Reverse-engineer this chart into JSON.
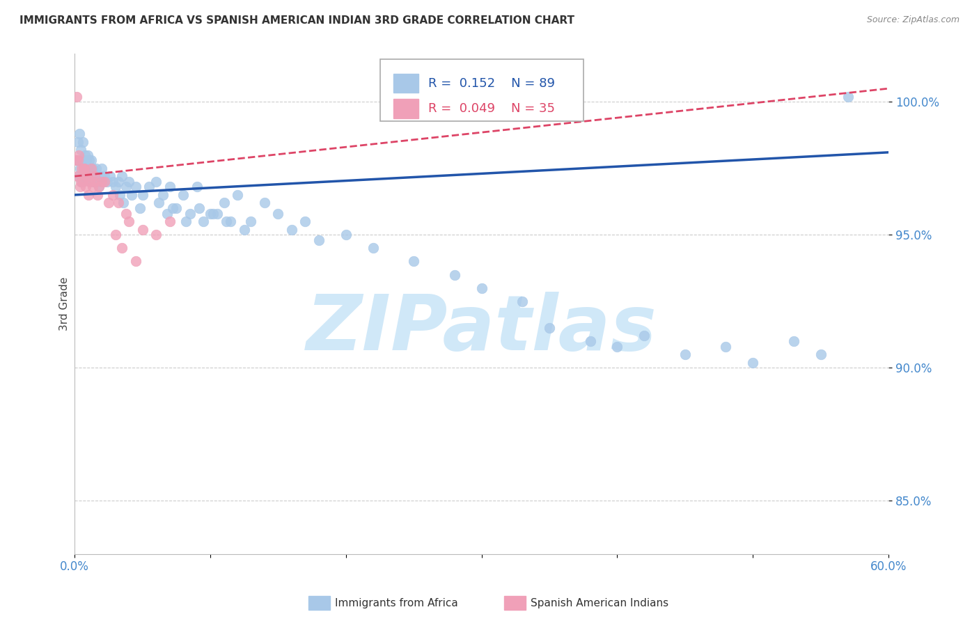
{
  "title": "IMMIGRANTS FROM AFRICA VS SPANISH AMERICAN INDIAN 3RD GRADE CORRELATION CHART",
  "source": "Source: ZipAtlas.com",
  "ylabel": "3rd Grade",
  "xlim": [
    0.0,
    60.0
  ],
  "ylim": [
    83.0,
    101.8
  ],
  "y_ticks": [
    85.0,
    90.0,
    95.0,
    100.0
  ],
  "x_ticks": [
    0.0,
    10.0,
    20.0,
    30.0,
    40.0,
    50.0,
    60.0
  ],
  "legend_R_blue": "0.152",
  "legend_N_blue": "89",
  "legend_R_pink": "0.049",
  "legend_N_pink": "35",
  "blue_color": "#a8c8e8",
  "pink_color": "#f0a0b8",
  "trend_blue_color": "#2255aa",
  "trend_pink_color": "#dd4466",
  "watermark_text": "ZIPatlas",
  "watermark_color": "#d0e8f8",
  "grid_color": "#cccccc",
  "bg_color": "#ffffff",
  "title_fontsize": 11,
  "tick_label_color": "#4488cc",
  "tick_fontsize": 12,
  "legend_fontsize": 13,
  "trend_blue_x0": 0.0,
  "trend_blue_y0": 96.5,
  "trend_blue_x1": 60.0,
  "trend_blue_y1": 98.1,
  "trend_pink_x0": 0.0,
  "trend_pink_y0": 97.2,
  "trend_pink_x1": 60.0,
  "trend_pink_y1": 100.5,
  "blue_scatter_x": [
    0.2,
    0.25,
    0.3,
    0.35,
    0.4,
    0.45,
    0.5,
    0.55,
    0.6,
    0.65,
    0.7,
    0.75,
    0.8,
    0.85,
    0.9,
    0.95,
    1.0,
    1.05,
    1.1,
    1.15,
    1.2,
    1.3,
    1.4,
    1.5,
    1.6,
    1.7,
    1.8,
    1.9,
    2.0,
    2.1,
    2.2,
    2.4,
    2.6,
    2.8,
    3.0,
    3.2,
    3.5,
    3.8,
    4.0,
    4.5,
    5.0,
    5.5,
    6.0,
    6.5,
    7.0,
    8.0,
    9.0,
    10.0,
    11.0,
    12.0,
    13.0,
    14.0,
    15.0,
    16.0,
    17.0,
    18.0,
    20.0,
    22.0,
    25.0,
    28.0,
    30.0,
    33.0,
    35.0,
    38.0,
    40.0,
    42.0,
    45.0,
    48.0,
    50.0,
    53.0,
    55.0,
    57.0,
    7.5,
    8.5,
    9.5,
    10.5,
    11.5,
    12.5,
    3.3,
    3.6,
    4.2,
    4.8,
    6.2,
    6.8,
    7.2,
    8.2,
    9.2,
    10.2,
    11.2
  ],
  "blue_scatter_y": [
    97.8,
    98.5,
    97.2,
    98.8,
    97.5,
    98.2,
    97.0,
    97.8,
    98.5,
    97.2,
    97.5,
    98.0,
    97.2,
    97.8,
    97.5,
    98.0,
    97.3,
    97.8,
    97.5,
    97.0,
    97.8,
    97.5,
    97.0,
    97.2,
    97.5,
    97.0,
    96.8,
    97.2,
    97.5,
    97.0,
    97.2,
    97.0,
    97.2,
    97.0,
    96.8,
    97.0,
    97.2,
    96.8,
    97.0,
    96.8,
    96.5,
    96.8,
    97.0,
    96.5,
    96.8,
    96.5,
    96.8,
    95.8,
    96.2,
    96.5,
    95.5,
    96.2,
    95.8,
    95.2,
    95.5,
    94.8,
    95.0,
    94.5,
    94.0,
    93.5,
    93.0,
    92.5,
    91.5,
    91.0,
    90.8,
    91.2,
    90.5,
    90.8,
    90.2,
    91.0,
    90.5,
    100.2,
    96.0,
    95.8,
    95.5,
    95.8,
    95.5,
    95.2,
    96.5,
    96.2,
    96.5,
    96.0,
    96.2,
    95.8,
    96.0,
    95.5,
    96.0,
    95.8,
    95.5
  ],
  "pink_scatter_x": [
    0.1,
    0.2,
    0.3,
    0.4,
    0.5,
    0.6,
    0.7,
    0.8,
    0.9,
    1.0,
    1.1,
    1.2,
    1.3,
    1.5,
    1.7,
    2.0,
    2.5,
    3.0,
    3.5,
    4.0,
    5.0,
    6.0,
    7.0,
    0.25,
    0.45,
    0.65,
    0.85,
    1.4,
    1.8,
    2.2,
    2.8,
    3.2,
    3.8,
    0.15,
    4.5
  ],
  "pink_scatter_y": [
    97.8,
    97.2,
    98.0,
    96.8,
    97.5,
    97.0,
    97.5,
    96.8,
    97.2,
    96.5,
    97.0,
    97.5,
    96.8,
    97.2,
    96.5,
    97.0,
    96.2,
    95.0,
    94.5,
    95.5,
    95.2,
    95.0,
    95.5,
    97.8,
    97.0,
    97.5,
    97.2,
    97.0,
    96.8,
    97.0,
    96.5,
    96.2,
    95.8,
    100.2,
    94.0
  ]
}
